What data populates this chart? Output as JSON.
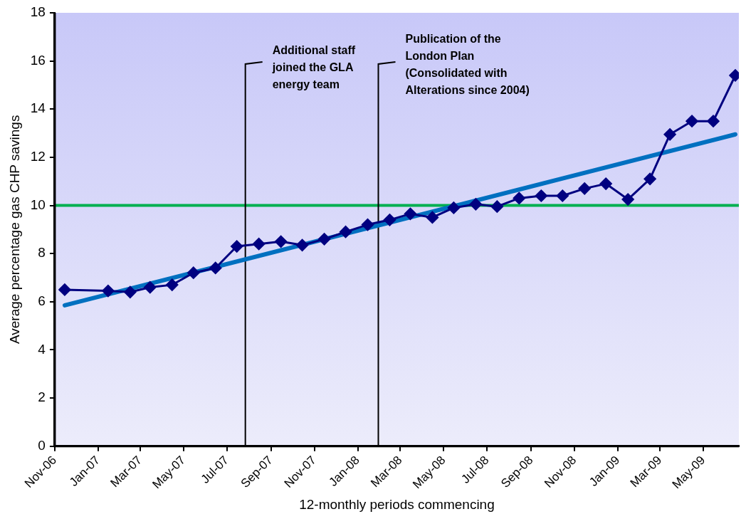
{
  "chart_data": {
    "type": "line",
    "xlabel": "12-monthly periods commencing",
    "ylabel": "Average percentage gas CHP savings",
    "x": [
      "2006-11-15",
      "2007-01-15",
      "2007-02-15",
      "2007-03-15",
      "2007-04-15",
      "2007-05-15",
      "2007-06-15",
      "2007-07-15",
      "2007-08-15",
      "2007-09-15",
      "2007-10-15",
      "2007-11-15",
      "2007-12-15",
      "2008-01-15",
      "2008-02-15",
      "2008-03-15",
      "2008-04-15",
      "2008-05-15",
      "2008-06-15",
      "2008-07-15",
      "2008-08-15",
      "2008-09-15",
      "2008-10-15",
      "2008-11-15",
      "2008-12-15",
      "2009-01-15",
      "2009-02-15",
      "2009-03-15",
      "2009-04-15",
      "2009-05-15",
      "2009-06-15"
    ],
    "series": [
      {
        "color": "#000080",
        "marker": "diamond",
        "values": [
          6.5,
          6.45,
          6.4,
          6.6,
          6.7,
          7.2,
          7.4,
          8.3,
          8.4,
          8.5,
          8.35,
          8.6,
          8.9,
          9.2,
          9.4,
          9.65,
          9.5,
          9.9,
          10.05,
          9.95,
          10.3,
          10.4,
          10.4,
          10.7,
          10.9,
          10.25,
          11.1,
          12.95,
          13.5,
          13.5,
          15.4
        ]
      },
      {
        "type": "line",
        "color": "#0070c0",
        "marker": "none",
        "x": [
          "2006-11-15",
          "2009-06-15"
        ],
        "values": [
          5.85,
          12.95
        ]
      }
    ],
    "ref_lines": [
      {
        "axis": "y",
        "value": 10,
        "color": "#00b050"
      },
      {
        "axis": "x",
        "value": "2007-07-27",
        "label": "Additional staff joined the GLA energy team",
        "color": "#000000"
      },
      {
        "axis": "x",
        "value": "2008-01-30",
        "label": "Publication of the London Plan (Consolidated with Alterations since 2004)",
        "color": "#000000"
      }
    ],
    "xlim": [
      "2006-11-01",
      "2009-06-20"
    ],
    "xticks": [
      {
        "value": "2006-11-01",
        "label": "Nov-06"
      },
      {
        "value": "2007-01-01",
        "label": "Jan-07"
      },
      {
        "value": "2007-03-01",
        "label": "Mar-07"
      },
      {
        "value": "2007-05-01",
        "label": "May-07"
      },
      {
        "value": "2007-07-01",
        "label": "Jul-07"
      },
      {
        "value": "2007-09-01",
        "label": "Sep-07"
      },
      {
        "value": "2007-11-01",
        "label": "Nov-07"
      },
      {
        "value": "2008-01-01",
        "label": "Jan-08"
      },
      {
        "value": "2008-03-01",
        "label": "Mar-08"
      },
      {
        "value": "2008-05-01",
        "label": "May-08"
      },
      {
        "value": "2008-07-01",
        "label": "Jul-08"
      },
      {
        "value": "2008-09-01",
        "label": "Sep-08"
      },
      {
        "value": "2008-11-01",
        "label": "Nov-08"
      },
      {
        "value": "2009-01-01",
        "label": "Jan-09"
      },
      {
        "value": "2009-03-01",
        "label": "Mar-09"
      },
      {
        "value": "2009-05-01",
        "label": "May-09"
      }
    ],
    "ylim": [
      0,
      18
    ],
    "yticks": [
      0,
      2,
      4,
      6,
      8,
      10,
      12,
      14,
      16,
      18
    ],
    "grid": false,
    "legend": false
  }
}
